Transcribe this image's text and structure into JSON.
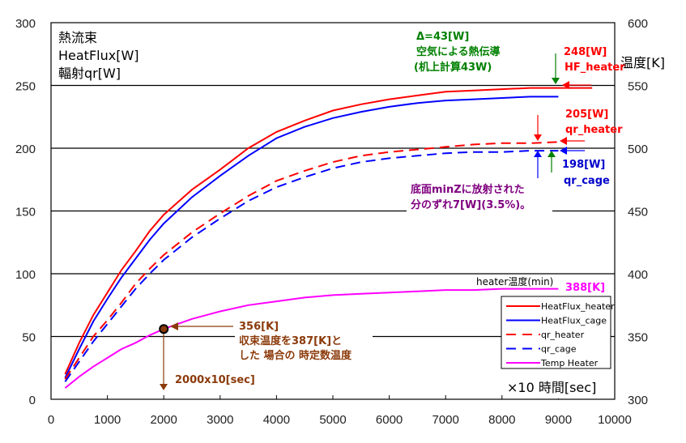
{
  "chart_data": {
    "type": "line",
    "title_lines": [
      "熱流束",
      "HeatFlux[W]",
      "輻射qr[W]"
    ],
    "xlabel": "×10 時間[sec]",
    "ylabel_right": "温度[K]",
    "xlim": [
      0,
      10000
    ],
    "ylim": [
      0,
      300
    ],
    "ylim_right": [
      300,
      600
    ],
    "x_ticks": [
      "0",
      "1000",
      "2000",
      "3000",
      "4000",
      "5000",
      "6000",
      "7000",
      "8000",
      "9000",
      "10000"
    ],
    "y_ticks": [
      "0",
      "50",
      "100",
      "150",
      "200",
      "250",
      "300"
    ],
    "y_ticks_right": [
      "300",
      "350",
      "400",
      "450",
      "500",
      "550",
      "600"
    ],
    "grid": true,
    "legend_position": "bottom-right",
    "series": [
      {
        "name": "HeatFlux_heater",
        "axis": "left",
        "style": "solid",
        "color": "#ff0000",
        "x": [
          250,
          500,
          750,
          1000,
          1250,
          1500,
          1750,
          2000,
          2500,
          3000,
          3500,
          4000,
          4500,
          5000,
          5500,
          6000,
          6500,
          7000,
          7500,
          8000,
          8500,
          9000,
          9600
        ],
        "y": [
          20,
          45,
          67,
          85,
          103,
          118,
          134,
          147,
          167,
          183,
          200,
          213,
          222,
          230,
          235,
          239,
          242,
          245,
          246,
          247,
          248,
          248,
          248
        ]
      },
      {
        "name": "HeatFlux_cage",
        "axis": "left",
        "style": "solid",
        "color": "#0000ff",
        "x": [
          250,
          500,
          750,
          1000,
          1250,
          1500,
          1750,
          2000,
          2500,
          3000,
          3500,
          4000,
          4500,
          5000,
          5500,
          6000,
          6500,
          7000,
          7500,
          8000,
          8500,
          9000
        ],
        "y": [
          17,
          40,
          62,
          80,
          97,
          112,
          127,
          140,
          161,
          178,
          194,
          208,
          217,
          224,
          229,
          233,
          236,
          238,
          239,
          240,
          241,
          241
        ]
      },
      {
        "name": "qr_heater",
        "axis": "left",
        "style": "dashed",
        "color": "#ff0000",
        "x": [
          250,
          500,
          750,
          1000,
          1250,
          1500,
          1750,
          2000,
          2500,
          3000,
          3500,
          4000,
          4500,
          5000,
          5500,
          6000,
          6500,
          7000,
          7500,
          8000,
          8500,
          9000
        ],
        "y": [
          16,
          33,
          50,
          63,
          77,
          92,
          104,
          115,
          133,
          148,
          162,
          174,
          182,
          189,
          194,
          197,
          199,
          201,
          203,
          204,
          204,
          205
        ]
      },
      {
        "name": "qr_cage",
        "axis": "left",
        "style": "dashed",
        "color": "#0000ff",
        "x": [
          250,
          500,
          750,
          1000,
          1250,
          1500,
          1750,
          2000,
          2500,
          3000,
          3500,
          4000,
          4500,
          5000,
          5500,
          6000,
          6500,
          7000,
          7500,
          8000,
          8500,
          9000
        ],
        "y": [
          14,
          30,
          46,
          60,
          74,
          88,
          100,
          111,
          129,
          144,
          158,
          169,
          177,
          184,
          189,
          192,
          194,
          196,
          197,
          197,
          198,
          198
        ]
      },
      {
        "name": "Temp Heater",
        "axis": "right",
        "style": "solid",
        "color": "#ff00ff",
        "x": [
          250,
          500,
          750,
          1000,
          1250,
          1500,
          1750,
          2000,
          2500,
          3000,
          3500,
          4000,
          4500,
          5000,
          5500,
          6000,
          6500,
          7000,
          7500,
          8000,
          8500,
          9000
        ],
        "y": [
          309,
          318,
          326,
          333,
          340,
          345,
          351,
          356,
          364,
          370,
          375,
          378,
          381,
          383,
          384,
          385,
          386,
          387,
          387,
          388,
          388,
          388
        ]
      }
    ],
    "annotations": {
      "delta": {
        "lines": [
          "Δ=43[W]",
          "空気による熱伝導",
          "(机上計算43W)"
        ],
        "color": "#008000"
      },
      "hf_heater": {
        "lines": [
          "248[W]",
          "HF_heater"
        ],
        "color": "#ff0000"
      },
      "qr_heater": {
        "lines": [
          "205[W]",
          "qr_heater"
        ],
        "color": "#ff0000"
      },
      "qr_cage": {
        "lines": [
          "198[W]",
          "qr_cage"
        ],
        "color": "#0000cc"
      },
      "minz": {
        "lines": [
          "底面minZに放射された",
          "分のずれ7[W](3.5%)。"
        ],
        "color": "#800080"
      },
      "heater_temp_label": "heater温度(min)",
      "heater_temp_value": "388[K]",
      "time_const": {
        "lines": [
          "356[K]",
          "収束温度を387[K]と",
          "した 場合の 時定数温度"
        ],
        "color": "#8b3a0a"
      },
      "time_const_x": "2000x10[sec]",
      "marker": {
        "x": 2000,
        "y": 356
      }
    }
  }
}
